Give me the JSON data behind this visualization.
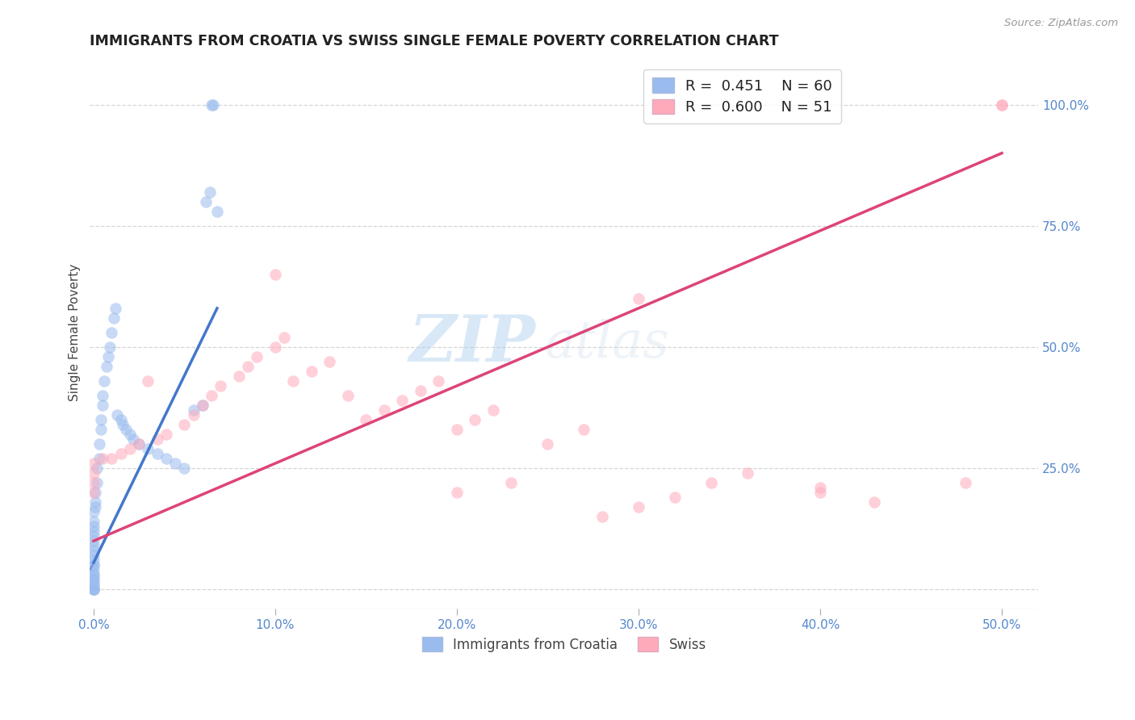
{
  "title": "IMMIGRANTS FROM CROATIA VS SWISS SINGLE FEMALE POVERTY CORRELATION CHART",
  "source": "Source: ZipAtlas.com",
  "ylabel_label": "Single Female Poverty",
  "legend_R1": "0.451",
  "legend_N1": "60",
  "legend_R2": "0.600",
  "legend_N2": "51",
  "legend_label1": "Immigrants from Croatia",
  "legend_label2": "Swiss",
  "color_blue": "#99bbee",
  "color_pink": "#ffaabb",
  "trendline_blue": "#4477cc",
  "trendline_pink": "#dd4477",
  "watermark_zip": "ZIP",
  "watermark_atlas": "atlas",
  "background_color": "#ffffff",
  "grid_color": "#cccccc",
  "tick_color": "#5588cc",
  "xlim": [
    -0.002,
    0.52
  ],
  "ylim": [
    -0.04,
    1.1
  ],
  "x_ticks": [
    0.0,
    0.1,
    0.2,
    0.3,
    0.4,
    0.5
  ],
  "y_ticks": [
    0.0,
    0.25,
    0.5,
    0.75,
    1.0
  ],
  "blue_x": [
    0.0,
    0.0,
    0.0,
    0.0,
    0.0,
    0.0,
    0.0,
    0.0,
    0.0,
    0.0,
    0.0,
    0.0,
    0.0,
    0.0,
    0.0,
    0.0,
    0.0,
    0.0,
    0.0,
    0.0,
    0.0,
    0.0,
    0.0,
    0.001,
    0.001,
    0.001,
    0.002,
    0.002,
    0.003,
    0.003,
    0.004,
    0.004,
    0.005,
    0.005,
    0.006,
    0.007,
    0.008,
    0.009,
    0.01,
    0.011,
    0.012,
    0.013,
    0.015,
    0.016,
    0.018,
    0.02,
    0.022,
    0.025,
    0.03,
    0.035,
    0.04,
    0.045,
    0.05,
    0.055,
    0.06,
    0.062,
    0.064,
    0.065,
    0.066,
    0.068
  ],
  "blue_y": [
    0.0,
    0.0,
    0.0,
    0.0,
    0.01,
    0.01,
    0.02,
    0.02,
    0.03,
    0.03,
    0.04,
    0.05,
    0.05,
    0.06,
    0.07,
    0.08,
    0.09,
    0.1,
    0.11,
    0.12,
    0.13,
    0.14,
    0.16,
    0.17,
    0.18,
    0.2,
    0.22,
    0.25,
    0.27,
    0.3,
    0.33,
    0.35,
    0.38,
    0.4,
    0.43,
    0.46,
    0.48,
    0.5,
    0.53,
    0.56,
    0.58,
    0.36,
    0.35,
    0.34,
    0.33,
    0.32,
    0.31,
    0.3,
    0.29,
    0.28,
    0.27,
    0.26,
    0.25,
    0.37,
    0.38,
    0.8,
    0.82,
    1.0,
    1.0,
    0.78
  ],
  "pink_x": [
    0.0,
    0.0,
    0.0,
    0.0,
    0.005,
    0.01,
    0.015,
    0.02,
    0.025,
    0.03,
    0.035,
    0.04,
    0.05,
    0.055,
    0.06,
    0.065,
    0.07,
    0.08,
    0.085,
    0.09,
    0.1,
    0.105,
    0.11,
    0.12,
    0.13,
    0.14,
    0.15,
    0.16,
    0.17,
    0.18,
    0.19,
    0.2,
    0.21,
    0.22,
    0.23,
    0.25,
    0.27,
    0.28,
    0.3,
    0.32,
    0.34,
    0.36,
    0.4,
    0.43,
    0.48,
    0.5,
    0.1,
    0.2,
    0.3,
    0.4,
    0.5
  ],
  "pink_y": [
    0.2,
    0.22,
    0.24,
    0.26,
    0.27,
    0.27,
    0.28,
    0.29,
    0.3,
    0.43,
    0.31,
    0.32,
    0.34,
    0.36,
    0.38,
    0.4,
    0.42,
    0.44,
    0.46,
    0.48,
    0.5,
    0.52,
    0.43,
    0.45,
    0.47,
    0.4,
    0.35,
    0.37,
    0.39,
    0.41,
    0.43,
    0.33,
    0.35,
    0.37,
    0.22,
    0.3,
    0.33,
    0.15,
    0.17,
    0.19,
    0.22,
    0.24,
    0.21,
    0.18,
    0.22,
    1.0,
    0.65,
    0.2,
    0.6,
    0.2,
    1.0
  ],
  "blue_trend_x0": 0.0,
  "blue_trend_y0": 0.055,
  "blue_trend_x1": 0.068,
  "blue_trend_y1": 0.58,
  "pink_trend_x0": 0.0,
  "pink_trend_y0": 0.1,
  "pink_trend_x1": 0.5,
  "pink_trend_y1": 0.9
}
